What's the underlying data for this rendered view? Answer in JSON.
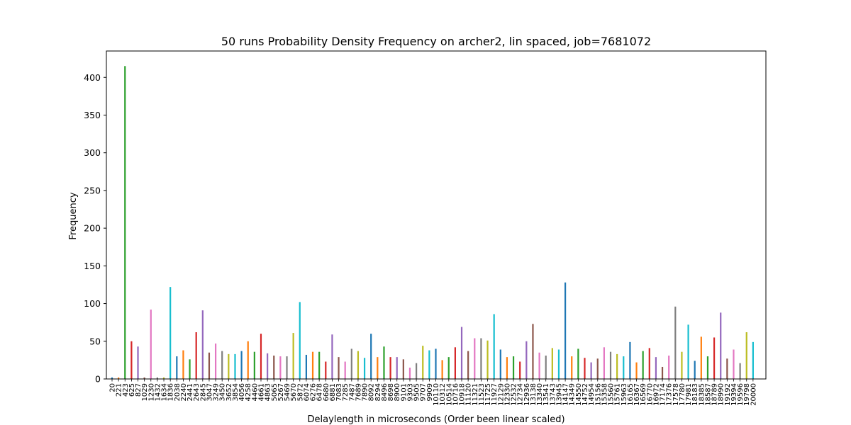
{
  "chart_data": {
    "type": "bar",
    "title": "50 runs Probability Density Frequency on archer2, lin spaced, job=7681072",
    "xlabel": "Delaylength in microseconds (Order been linear scaled)",
    "ylabel": "Frequency",
    "ylim": [
      0,
      435
    ],
    "yticks": [
      0,
      50,
      100,
      150,
      200,
      250,
      300,
      350,
      400
    ],
    "grid": false,
    "categories": [
      "20",
      "221",
      "423",
      "625",
      "827",
      "1029",
      "1230",
      "1432",
      "1634",
      "1836",
      "2038",
      "2240",
      "2441",
      "2643",
      "2845",
      "3047",
      "3249",
      "3450",
      "3652",
      "3854",
      "4056",
      "4258",
      "4460",
      "4661",
      "4863",
      "5065",
      "5267",
      "5469",
      "5670",
      "5872",
      "6074",
      "6276",
      "6478",
      "6680",
      "6881",
      "7083",
      "7285",
      "7487",
      "7689",
      "7890",
      "8092",
      "8294",
      "8496",
      "8698",
      "8900",
      "9101",
      "9303",
      "9505",
      "9707",
      "9909",
      "10110",
      "10312",
      "10514",
      "10716",
      "10918",
      "11120",
      "11321",
      "11523",
      "11725",
      "11927",
      "12129",
      "12330",
      "12532",
      "12734",
      "12936",
      "13138",
      "13340",
      "13541",
      "13743",
      "13945",
      "14147",
      "14349",
      "14550",
      "14752",
      "14954",
      "15156",
      "15358",
      "15560",
      "15761",
      "15963",
      "16165",
      "16367",
      "16569",
      "16770",
      "16972",
      "17174",
      "17376",
      "17578",
      "17780",
      "17981",
      "18183",
      "18385",
      "18587",
      "18789",
      "18990",
      "19192",
      "19394",
      "19596",
      "19798",
      "20000"
    ],
    "values": [
      2,
      2,
      415,
      50,
      43,
      2,
      92,
      2,
      2,
      122,
      30,
      38,
      26,
      62,
      91,
      35,
      47,
      37,
      33,
      33,
      37,
      50,
      36,
      60,
      34,
      31,
      30,
      30,
      61,
      102,
      32,
      36,
      36,
      23,
      59,
      29,
      23,
      40,
      37,
      28,
      60,
      29,
      43,
      29,
      29,
      26,
      15,
      21,
      44,
      38,
      40,
      25,
      29,
      42,
      69,
      37,
      54,
      54,
      51,
      86,
      39,
      29,
      30,
      23,
      50,
      73,
      35,
      31,
      41,
      39,
      128,
      30,
      40,
      28,
      22,
      27,
      42,
      36,
      33,
      30,
      49,
      22,
      37,
      41,
      29,
      16,
      31,
      96,
      36,
      72,
      24,
      56,
      30,
      55,
      88,
      27,
      39,
      21,
      62,
      49
    ]
  },
  "colors": [
    "#1f77b4",
    "#ff7f0e",
    "#2ca02c",
    "#d62728",
    "#9467bd",
    "#8c564b",
    "#e377c2",
    "#7f7f7f",
    "#bcbd22",
    "#17becf"
  ]
}
